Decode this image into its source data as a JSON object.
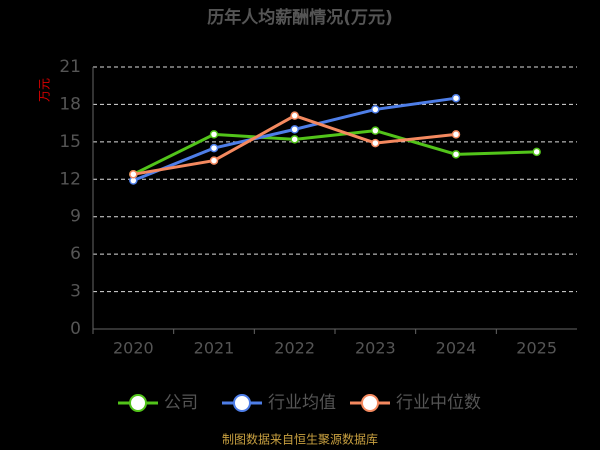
{
  "chart_data": {
    "type": "line",
    "title": "历年人均薪酬情况(万元)",
    "y_label": "万元",
    "source": "制图数据来自恒生聚源数据库",
    "categories": [
      "2020",
      "2021",
      "2022",
      "2023",
      "2024",
      "2025"
    ],
    "series": [
      {
        "name": "公司",
        "color": "#52c41a",
        "values": [
          12.4,
          15.6,
          15.2,
          15.9,
          14.0,
          14.2
        ]
      },
      {
        "name": "行业均值",
        "color": "#4e7ee8",
        "values": [
          11.9,
          14.5,
          16.0,
          17.6,
          18.5,
          null
        ]
      },
      {
        "name": "行业中位数",
        "color": "#f4895f",
        "values": [
          12.4,
          13.5,
          17.1,
          14.9,
          15.6,
          null
        ]
      }
    ],
    "ylim": [
      0,
      21
    ],
    "yticks": [
      0,
      3,
      6,
      9,
      12,
      15,
      18,
      21
    ],
    "grid": true
  }
}
